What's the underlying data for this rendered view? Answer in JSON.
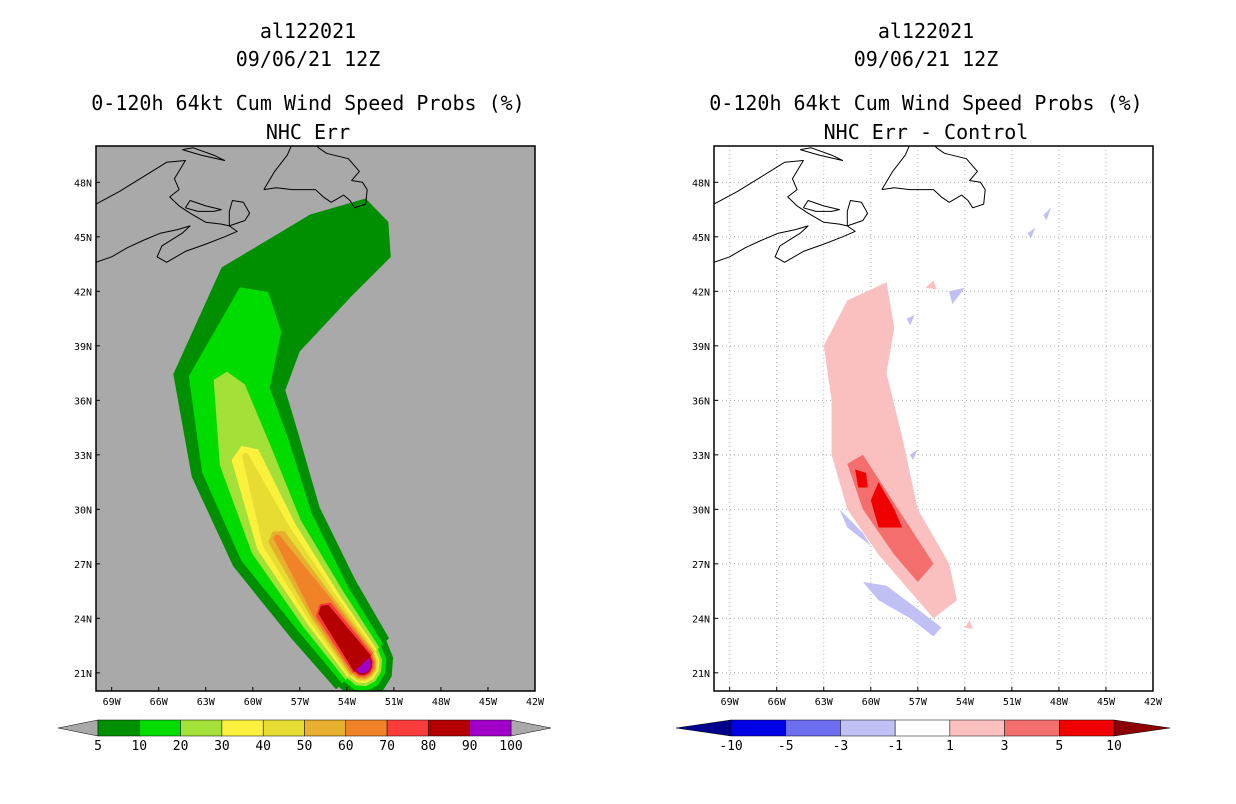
{
  "colors": {
    "ocean_left": "#a9a9a9",
    "land_left": "#a9a9a9",
    "ocean_right": "#ffffff",
    "coast": "#000000",
    "grid_right": "#b0b0b0"
  },
  "chart_data": [
    {
      "type": "contour-map",
      "title_lines": [
        "al122021",
        "09/06/21 12Z",
        "0-120h 64kt Cum Wind Speed Probs (%)",
        "NHC Err"
      ],
      "lon_ticks": [
        "69W",
        "66W",
        "63W",
        "60W",
        "57W",
        "54W",
        "51W",
        "48W",
        "45W",
        "42W"
      ],
      "lat_ticks": [
        "48N",
        "45N",
        "42N",
        "39N",
        "36N",
        "33N",
        "30N",
        "27N",
        "24N",
        "21N"
      ],
      "lon_range": [
        -70,
        -42
      ],
      "lat_range": [
        20,
        50
      ],
      "grid": false,
      "colorbar": {
        "labels": [
          "5",
          "10",
          "20",
          "30",
          "40",
          "50",
          "60",
          "70",
          "80",
          "90",
          "100"
        ],
        "colors": [
          "#008f00",
          "#00dc00",
          "#a3e038",
          "#fbf03c",
          "#e6dc32",
          "#e6af2d",
          "#f08228",
          "#fa3c3c",
          "#b40000",
          "#a000c8"
        ],
        "extend_color": "#a9a9a9"
      },
      "track": [
        [
          -53,
          21.5
        ],
        [
          -55.5,
          24.5
        ],
        [
          -58.5,
          28.5
        ],
        [
          -60.5,
          33
        ],
        [
          -61.5,
          37
        ],
        [
          -59.5,
          41
        ],
        [
          -55,
          44
        ],
        [
          -52,
          45.5
        ]
      ],
      "levels": [
        {
          "threshold": 5,
          "color": "#008f00",
          "half_width_deg": [
            2.2,
            2.6,
            3.2,
            3.6,
            3.6,
            3.4,
            2.6,
            1.8
          ]
        },
        {
          "threshold": 10,
          "color": "#00dc00",
          "half_width_deg": [
            1.7,
            2.0,
            2.6,
            2.9,
            2.6,
            1.8,
            0,
            0
          ]
        },
        {
          "threshold": 20,
          "color": "#a3e038",
          "half_width_deg": [
            1.4,
            1.6,
            1.8,
            1.7,
            1.0,
            0,
            0,
            0
          ]
        },
        {
          "threshold": 30,
          "color": "#fbf03c",
          "half_width_deg": [
            1.2,
            1.3,
            1.4,
            0.9,
            0,
            0,
            0,
            0
          ]
        },
        {
          "threshold": 40,
          "color": "#e6dc32",
          "half_width_deg": [
            1.1,
            1.1,
            1.0,
            0.2,
            0,
            0,
            0,
            0
          ]
        },
        {
          "threshold": 50,
          "color": "#e6af2d",
          "half_width_deg": [
            1.0,
            0.9,
            0.6,
            0,
            0,
            0,
            0,
            0
          ]
        },
        {
          "threshold": 60,
          "color": "#f08228",
          "half_width_deg": [
            0.9,
            0.75,
            0.2,
            0,
            0,
            0,
            0,
            0
          ]
        },
        {
          "threshold": 70,
          "color": "#fa3c3c",
          "half_width_deg": [
            0.8,
            0.6,
            0,
            0,
            0,
            0,
            0,
            0
          ]
        },
        {
          "threshold": 80,
          "color": "#b40000",
          "half_width_deg": [
            0.7,
            0.4,
            0,
            0,
            0,
            0,
            0,
            0
          ]
        },
        {
          "threshold": 90,
          "color": "#a000c8",
          "half_width_deg": [
            0.6,
            0,
            0,
            0,
            0,
            0,
            0,
            0
          ]
        }
      ]
    },
    {
      "type": "contour-map",
      "title_lines": [
        "al122021",
        "09/06/21 12Z",
        "0-120h 64kt Cum Wind Speed Probs (%)",
        "NHC Err - Control"
      ],
      "lon_ticks": [
        "69W",
        "66W",
        "63W",
        "60W",
        "57W",
        "54W",
        "51W",
        "48W",
        "45W",
        "42W"
      ],
      "lat_ticks": [
        "48N",
        "45N",
        "42N",
        "39N",
        "36N",
        "33N",
        "30N",
        "27N",
        "24N",
        "21N"
      ],
      "lon_range": [
        -70,
        -42
      ],
      "lat_range": [
        20,
        50
      ],
      "grid": true,
      "colorbar": {
        "labels": [
          "-10",
          "-5",
          "-3",
          "-1",
          "1",
          "3",
          "5",
          "10"
        ],
        "colors": [
          "#0000e6",
          "#6e6ef0",
          "#c0c0f5",
          "#ffffff",
          "#fac0c0",
          "#f56e6e",
          "#f00000"
        ],
        "extend_low_color": "#00008c",
        "extend_high_color": "#8c0000"
      },
      "blobs": [
        {
          "color": "#fac0c0",
          "points": [
            [
              -56,
              24
            ],
            [
              -57.5,
              25.5
            ],
            [
              -59.5,
              27.5
            ],
            [
              -61.5,
              30
            ],
            [
              -62.5,
              33
            ],
            [
              -62.5,
              36
            ],
            [
              -63,
              39
            ],
            [
              -61.5,
              41.5
            ],
            [
              -59,
              42.5
            ],
            [
              -58.5,
              40
            ],
            [
              -59,
              37.5
            ],
            [
              -58,
              34
            ],
            [
              -57,
              30
            ],
            [
              -55,
              27
            ],
            [
              -54.5,
              25
            ]
          ]
        },
        {
          "color": "#f56e6e",
          "points": [
            [
              -57,
              26
            ],
            [
              -58.5,
              27.5
            ],
            [
              -60.5,
              30
            ],
            [
              -61.5,
              32.5
            ],
            [
              -60.5,
              33
            ],
            [
              -59,
              31
            ],
            [
              -57.5,
              29
            ],
            [
              -56,
              27
            ]
          ]
        },
        {
          "color": "#f00000",
          "points": [
            [
              -59.5,
              29
            ],
            [
              -60,
              30.5
            ],
            [
              -59.5,
              31.5
            ],
            [
              -58.5,
              30
            ],
            [
              -58,
              29
            ]
          ]
        },
        {
          "color": "#f00000",
          "points": [
            [
              -60.8,
              31.2
            ],
            [
              -61,
              32.2
            ],
            [
              -60.3,
              32
            ],
            [
              -60.2,
              31.2
            ]
          ]
        },
        {
          "color": "#c0c0f5",
          "points": [
            [
              -62,
              30
            ],
            [
              -62.5,
              31
            ],
            [
              -61.5,
              29
            ],
            [
              -60,
              28
            ],
            [
              -60.5,
              28.7
            ]
          ]
        },
        {
          "color": "#c0c0f5",
          "points": [
            [
              -60.5,
              26
            ],
            [
              -59,
              25.8
            ],
            [
              -57,
              24.5
            ],
            [
              -55.5,
              23.5
            ],
            [
              -56,
              23
            ],
            [
              -57.5,
              24
            ],
            [
              -59.5,
              25
            ]
          ]
        },
        {
          "color": "#c0c0f5",
          "points": [
            [
              -55,
              42
            ],
            [
              -54,
              42.2
            ],
            [
              -54.8,
              41.3
            ]
          ]
        },
        {
          "color": "#c0c0f5",
          "points": [
            [
              -57.5,
              33
            ],
            [
              -57,
              33.3
            ],
            [
              -57.3,
              32.7
            ]
          ]
        },
        {
          "color": "#c0c0f5",
          "points": [
            [
              -57.7,
              40.5
            ],
            [
              -57.2,
              40.7
            ],
            [
              -57.5,
              40.1
            ]
          ]
        },
        {
          "color": "#c0c0f5",
          "points": [
            [
              -50,
              45.2
            ],
            [
              -49.5,
              45.5
            ],
            [
              -49.8,
              44.9
            ]
          ]
        },
        {
          "color": "#c0c0f5",
          "points": [
            [
              -49,
              46.2
            ],
            [
              -48.5,
              46.6
            ],
            [
              -48.8,
              45.9
            ]
          ]
        },
        {
          "color": "#fac0c0",
          "points": [
            [
              -56.5,
              42.2
            ],
            [
              -56,
              42.6
            ],
            [
              -55.8,
              42.1
            ]
          ]
        },
        {
          "color": "#fac0c0",
          "points": [
            [
              -54,
              23.5
            ],
            [
              -53.7,
              23.9
            ],
            [
              -53.5,
              23.4
            ]
          ]
        }
      ]
    }
  ]
}
